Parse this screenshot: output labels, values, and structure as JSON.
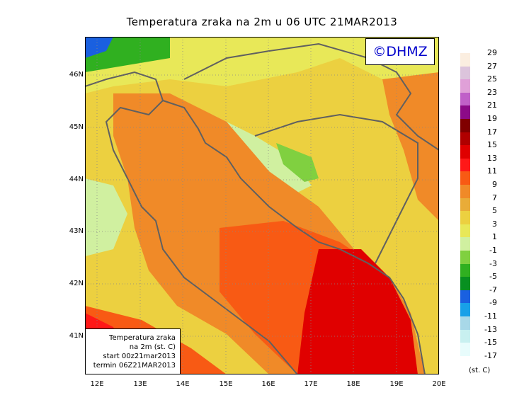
{
  "title": "Temperatura zraka na 2m u 06 UTC 21MAR2013",
  "logo_text": "©DHMZ",
  "lat_labels": [
    "46N",
    "45N",
    "44N",
    "43N",
    "42N",
    "41N"
  ],
  "lon_labels": [
    "12E",
    "13E",
    "14E",
    "15E",
    "16E",
    "17E",
    "18E",
    "19E",
    "20E"
  ],
  "info_box": {
    "line1": "Temperatura zraka",
    "line2": "na 2m (st. C)",
    "line3": "start 00z21mar2013",
    "line4": "termin 06Z21MAR2013"
  },
  "legend": {
    "labels": [
      "29",
      "27",
      "25",
      "23",
      "21",
      "19",
      "17",
      "15",
      "13",
      "11",
      "9",
      "7",
      "5",
      "3",
      "1",
      "-1",
      "-3",
      "-5",
      "-7",
      "-9",
      "-11",
      "-13",
      "-15",
      "-17"
    ],
    "colors": [
      "#fbeee0",
      "#dcc4dc",
      "#e0a0d8",
      "#c060c8",
      "#8c0a88",
      "#800000",
      "#b00000",
      "#e00000",
      "#ff1818",
      "#f85a14",
      "#f08a28",
      "#e9ac38",
      "#ecd040",
      "#e8e858",
      "#d0f0a0",
      "#80d040",
      "#30b020",
      "#089020",
      "#1a60e0",
      "#18a0e8",
      "#a8d8e8",
      "#c8f0f0",
      "#e8fcfc"
    ],
    "unit": "(st. C)"
  },
  "map_colors": {
    "very_warm": "#e00000",
    "warm": "#f85a14",
    "mild": "#f08a28",
    "cool": "#e9ac38",
    "cooler": "#ecd040",
    "cold": "#d0f0a0",
    "colder": "#80d040",
    "freezing": "#1a60e0",
    "border": "#606060"
  }
}
